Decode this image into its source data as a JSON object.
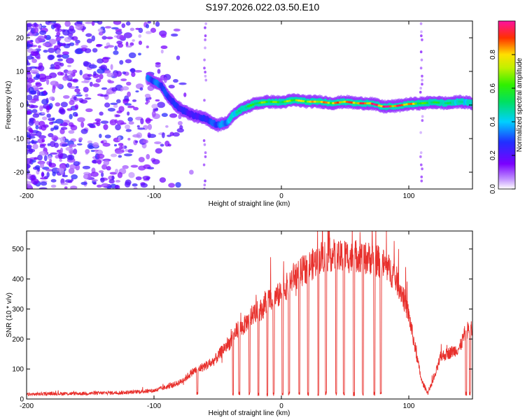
{
  "title": "S197.2026.022.03.50.E10",
  "colors": {
    "signal_purple": "#7a00ff",
    "snr_line": "#e8302c",
    "axis": "#000000"
  },
  "chart_data": [
    {
      "type": "heatmap",
      "name": "spectrogram",
      "xlabel": "Height of straight line (km)",
      "ylabel": "Frequency (Hz)",
      "xlim": [
        -200,
        150
      ],
      "ylim": [
        -25,
        25
      ],
      "x_ticks": [
        -200,
        -100,
        0,
        100
      ],
      "x_tick_labels": [
        "-200",
        "-100",
        "0",
        "100"
      ],
      "y_ticks": [
        -20,
        -10,
        0,
        10,
        20
      ],
      "y_tick_labels": [
        "-20",
        "-10",
        "0",
        "10",
        "20"
      ],
      "colorbar": {
        "label": "Normalized spectral amplitude",
        "ticks": [
          0.0,
          0.2,
          0.4,
          0.6,
          0.8
        ],
        "tick_labels": [
          "0.0",
          "0.2",
          "0.4",
          "0.6",
          "0.8"
        ],
        "range": [
          0,
          1
        ],
        "colormap": "rainbow (violet-blue-cyan-green-yellow-red-magenta)"
      },
      "ridge": {
        "x": [
          -105,
          -95,
          -88,
          -80,
          -70,
          -60,
          -50,
          -42,
          -38,
          -30,
          -20,
          -10,
          0,
          10,
          20,
          30,
          40,
          50,
          60,
          70,
          80,
          90,
          100,
          110,
          120,
          130,
          140,
          150
        ],
        "y": [
          8,
          6,
          2,
          -1,
          -3,
          -4,
          -6,
          -5,
          -3,
          -1,
          0.5,
          1,
          0.8,
          1.5,
          1,
          1,
          0.5,
          1,
          0.5,
          0.5,
          -0.5,
          -0.3,
          0.3,
          0.5,
          0.8,
          0.5,
          1,
          0.5
        ],
        "amplitude": [
          0.3,
          0.3,
          0.25,
          0.25,
          0.2,
          0.25,
          0.3,
          0.35,
          0.4,
          0.5,
          0.6,
          0.65,
          0.6,
          0.7,
          0.75,
          0.8,
          0.8,
          0.85,
          0.85,
          0.9,
          0.95,
          0.9,
          0.85,
          0.6,
          0.55,
          0.5,
          0.45,
          0.4
        ]
      },
      "noise_region_x": [
        -200,
        -90
      ]
    },
    {
      "type": "line",
      "name": "snr",
      "xlabel": "Height of straight line (km)",
      "ylabel": "SNR (10 * v/v)",
      "xlim": [
        -200,
        150
      ],
      "ylim": [
        0,
        560
      ],
      "x_ticks": [
        -200,
        -100,
        0,
        100
      ],
      "x_tick_labels": [
        "-200",
        "-100",
        "0",
        "100"
      ],
      "y_ticks": [
        0,
        100,
        200,
        300,
        400,
        500
      ],
      "y_tick_labels": [
        "0",
        "100",
        "200",
        "300",
        "400",
        "500"
      ],
      "series": [
        {
          "name": "SNR",
          "x": [
            -200,
            -180,
            -160,
            -140,
            -120,
            -100,
            -90,
            -80,
            -75,
            -70,
            -65,
            -60,
            -55,
            -50,
            -45,
            -40,
            -35,
            -30,
            -25,
            -20,
            -15,
            -10,
            -5,
            0,
            5,
            10,
            15,
            20,
            25,
            30,
            35,
            40,
            45,
            50,
            55,
            60,
            65,
            70,
            75,
            80,
            85,
            90,
            95,
            100,
            105,
            110,
            115,
            120,
            125,
            130,
            135,
            140,
            145,
            150
          ],
          "y": [
            15,
            18,
            18,
            20,
            22,
            28,
            40,
            55,
            70,
            90,
            100,
            110,
            120,
            140,
            170,
            190,
            230,
            240,
            270,
            290,
            300,
            330,
            340,
            350,
            380,
            410,
            420,
            440,
            450,
            470,
            480,
            480,
            470,
            480,
            470,
            480,
            470,
            470,
            460,
            450,
            430,
            400,
            350,
            280,
            170,
            60,
            20,
            70,
            140,
            150,
            160,
            170,
            230,
            230
          ]
        }
      ],
      "dropouts_x": [
        -66,
        -38,
        -33,
        -25,
        -18,
        -11,
        -6,
        1,
        6,
        14,
        21,
        29,
        35,
        43,
        49,
        57,
        64,
        73,
        78,
        145,
        148
      ]
    }
  ]
}
